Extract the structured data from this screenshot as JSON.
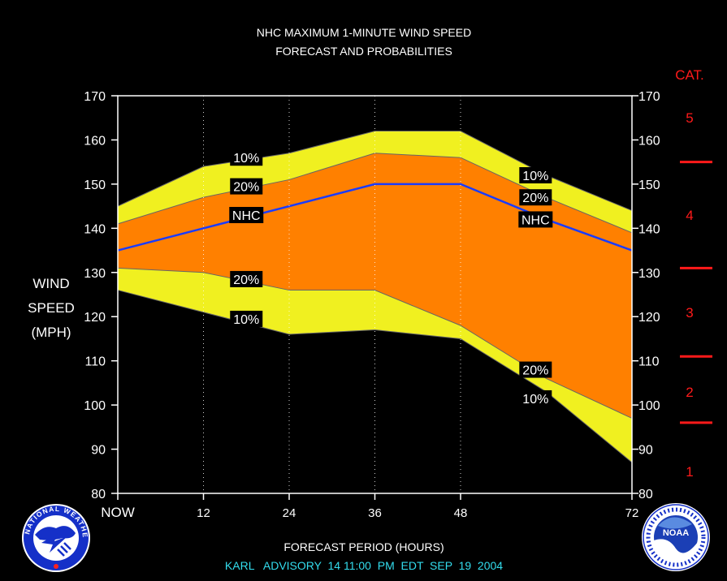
{
  "chart_data": {
    "type": "area",
    "title_line1": "NHC MAXIMUM 1-MINUTE WIND SPEED",
    "title_line2": "FORECAST AND PROBABILITIES",
    "ylabel_lines": [
      "WIND",
      "SPEED",
      "(MPH)"
    ],
    "xlabel": "FORECAST PERIOD (HOURS)",
    "footer": "KARL   ADVISORY  14 11:00  PM  EDT  SEP  19  2004",
    "x": [
      0,
      12,
      24,
      36,
      48,
      60,
      72
    ],
    "x_tick_labels": [
      "NOW",
      "12",
      "24",
      "36",
      "48",
      "72"
    ],
    "x_tick_values": [
      0,
      12,
      24,
      36,
      48,
      72
    ],
    "ylim": [
      80,
      170
    ],
    "y_ticks": [
      80,
      90,
      100,
      110,
      120,
      130,
      140,
      150,
      160,
      170
    ],
    "xlim": [
      0,
      72
    ],
    "grid": "vertical dotted at 12, 24, 36, 48",
    "series": [
      {
        "name": "10%",
        "role": "upper-10",
        "values": [
          145,
          154,
          157,
          162,
          162,
          152,
          144
        ]
      },
      {
        "name": "20%",
        "role": "upper-20",
        "values": [
          141,
          147,
          151,
          157,
          156,
          147,
          139
        ]
      },
      {
        "name": "NHC",
        "role": "forecast",
        "values": [
          135,
          140,
          145,
          150,
          150,
          142,
          135
        ]
      },
      {
        "name": "20%",
        "role": "lower-20",
        "values": [
          131,
          130,
          126,
          126,
          118,
          106,
          97
        ]
      },
      {
        "name": "10%",
        "role": "lower-10",
        "values": [
          126,
          121,
          116,
          117,
          115,
          103,
          87
        ]
      }
    ],
    "band_labels": [
      {
        "text": "10%",
        "x": 18,
        "y": 156
      },
      {
        "text": "20%",
        "x": 18,
        "y": 149.5
      },
      {
        "text": "NHC",
        "x": 18,
        "y": 143
      },
      {
        "text": "20%",
        "x": 18,
        "y": 128.5
      },
      {
        "text": "10%",
        "x": 18,
        "y": 119.5
      },
      {
        "text": "10%",
        "x": 58.5,
        "y": 152
      },
      {
        "text": "20%",
        "x": 58.5,
        "y": 147
      },
      {
        "text": "NHC",
        "x": 58.5,
        "y": 142
      },
      {
        "text": "20%",
        "x": 58.5,
        "y": 108
      },
      {
        "text": "10%",
        "x": 58.5,
        "y": 101.5
      }
    ],
    "category_title": "CAT.",
    "categories": [
      {
        "label": "5",
        "y": 165
      },
      {
        "label": "4",
        "y": 143
      },
      {
        "label": "3",
        "y": 121
      },
      {
        "label": "2",
        "y": 103
      },
      {
        "label": "1",
        "y": 85
      }
    ],
    "category_boundaries": [
      155,
      131,
      111,
      96
    ],
    "colors": {
      "band_10": "#f0f020",
      "band_20": "#ff8000",
      "nhc_line": "#1a3cff",
      "category_red": "#ff1a1a",
      "footer_cyan": "#33ddee"
    }
  },
  "logos": {
    "left_icon": "nws-logo-icon",
    "right_icon": "noaa-logo-icon",
    "left_text": "NATIONAL WEATHER SERVICE",
    "right_badge": "NOAA"
  }
}
